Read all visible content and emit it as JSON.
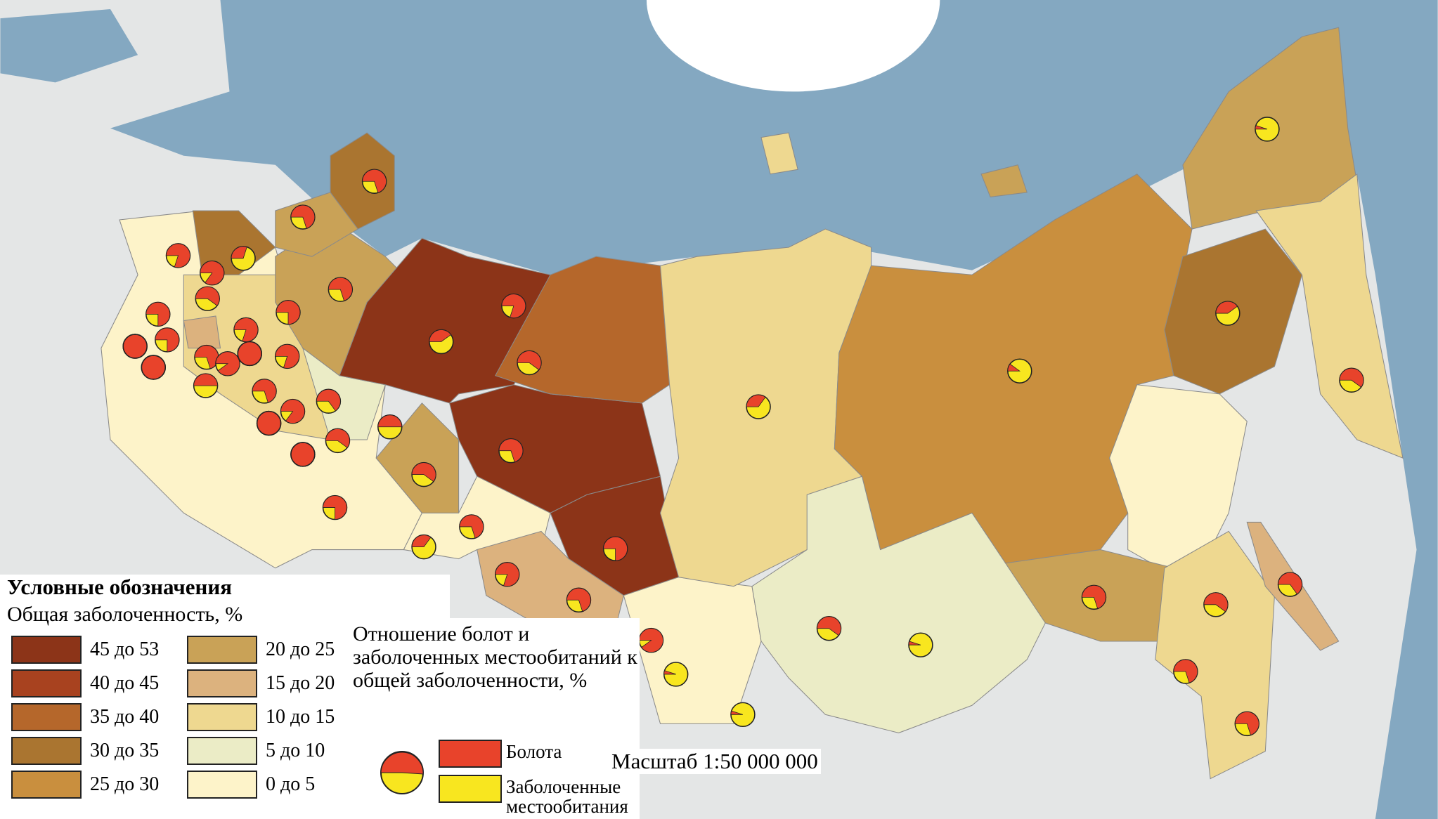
{
  "legend": {
    "title": "Условные обозначения",
    "subtitle": "Общая заболоченность, %",
    "classes": [
      {
        "label": "45 до 53",
        "color": "#8c3418"
      },
      {
        "label": "40 до 45",
        "color": "#a8421f"
      },
      {
        "label": "35 до 40",
        "color": "#b5672b"
      },
      {
        "label": "30 до 35",
        "color": "#aa7530"
      },
      {
        "label": "25 до 30",
        "color": "#c98f3e"
      },
      {
        "label": "20 до 25",
        "color": "#c9a257"
      },
      {
        "label": "15 до 20",
        "color": "#dcb27e"
      },
      {
        "label": "10 до 15",
        "color": "#eed890"
      },
      {
        "label": "5 до 10",
        "color": "#ebecc6"
      },
      {
        "label": "0 до 5",
        "color": "#fdf3c9"
      }
    ]
  },
  "pie_legend": {
    "title": "Отношение болот и заболоченных местообитаний к общей заболоченности, %",
    "items": [
      {
        "label": "Болота",
        "color": "#e8432b"
      },
      {
        "label": "Заболоченные местообитания",
        "color": "#f8e61f"
      }
    ]
  },
  "scale": "Масштаб 1:50 000 000",
  "regions": {
    "bog_share": [
      70,
      70,
      80,
      30,
      85,
      60,
      75,
      75,
      100,
      100,
      70,
      90,
      100,
      80,
      75,
      80,
      70,
      50,
      70,
      85,
      65,
      100,
      100,
      60,
      50,
      60,
      40,
      80,
      60,
      70,
      75,
      70,
      35,
      75,
      80,
      70,
      90,
      5,
      5,
      35,
      60,
      5,
      10,
      40,
      5,
      60,
      70,
      60,
      65,
      70,
      70
    ]
  }
}
